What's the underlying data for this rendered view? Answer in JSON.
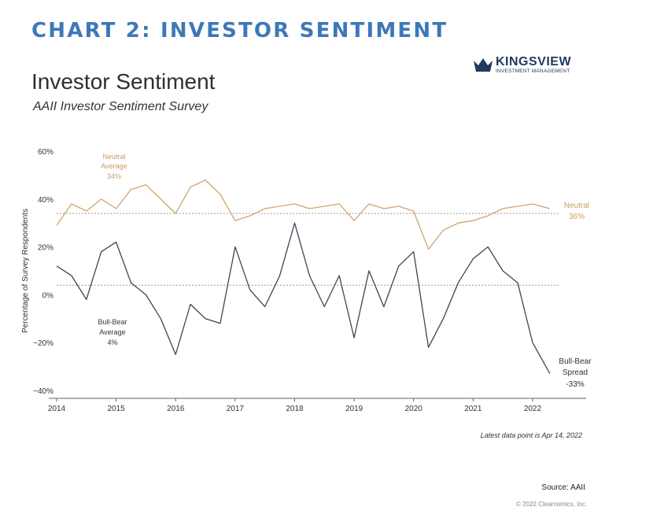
{
  "header": {
    "title": "CHART 2: INVESTOR SENTIMENT"
  },
  "logo": {
    "name": "KINGSVIEW",
    "tagline": "INVESTMENT MANAGEMENT"
  },
  "colors": {
    "header": "#3d78b8",
    "neutral": "#d4a36c",
    "spread": "#3b4655",
    "logo": "#1f3a5c",
    "reference": "#9a9a9a",
    "axis": "#666666",
    "neutral_text": "#c99a63",
    "text": "#333333"
  },
  "chart_data": {
    "type": "line",
    "title": "Investor Sentiment",
    "subtitle": "AAII Investor Sentiment Survey",
    "ylabel": "Percentage of Survey Respondents",
    "xlabel": "",
    "ylim": [
      -44,
      64
    ],
    "xlim": [
      2014,
      2022.9
    ],
    "y_ticks": [
      {
        "value": 60,
        "label": "60%"
      },
      {
        "value": 40,
        "label": "40%"
      },
      {
        "value": 20,
        "label": "20%"
      },
      {
        "value": 0,
        "label": "0%"
      },
      {
        "value": -20,
        "label": "−20%"
      },
      {
        "value": -40,
        "label": "−40%"
      }
    ],
    "x_ticks": [
      {
        "value": 2014,
        "label": "2014"
      },
      {
        "value": 2015,
        "label": "2015"
      },
      {
        "value": 2016,
        "label": "2016"
      },
      {
        "value": 2017,
        "label": "2017"
      },
      {
        "value": 2018,
        "label": "2018"
      },
      {
        "value": 2019,
        "label": "2019"
      },
      {
        "value": 2020,
        "label": "2020"
      },
      {
        "value": 2021,
        "label": "2021"
      },
      {
        "value": 2022,
        "label": "2022"
      }
    ],
    "reference_lines": [
      {
        "name": "Neutral Average",
        "value": 34
      },
      {
        "name": "Bull-Bear Average",
        "value": 4
      }
    ],
    "annotations": {
      "neutral_avg": [
        "Neutral",
        "Average",
        "34%"
      ],
      "neutral_last": [
        "Neutral",
        "36%"
      ],
      "spread_avg": [
        "Bull-Bear",
        "Average",
        "4%"
      ],
      "spread_last": [
        "Bull-Bear",
        "Spread",
        "-33%"
      ]
    },
    "series": [
      {
        "name": "Neutral",
        "x": [
          2014.0,
          2014.25,
          2014.5,
          2014.75,
          2015.0,
          2015.25,
          2015.5,
          2015.75,
          2016.0,
          2016.25,
          2016.5,
          2016.75,
          2017.0,
          2017.25,
          2017.5,
          2017.75,
          2018.0,
          2018.25,
          2018.5,
          2018.75,
          2019.0,
          2019.25,
          2019.5,
          2019.75,
          2020.0,
          2020.25,
          2020.5,
          2020.75,
          2021.0,
          2021.25,
          2021.5,
          2021.75,
          2022.0,
          2022.29
        ],
        "values": [
          29,
          38,
          35,
          40,
          36,
          44,
          46,
          40,
          34,
          45,
          48,
          42,
          31,
          33,
          36,
          37,
          38,
          36,
          37,
          38,
          31,
          38,
          36,
          37,
          35,
          19,
          27,
          30,
          31,
          33,
          36,
          37,
          38,
          36
        ]
      },
      {
        "name": "Bull-Bear Spread",
        "x": [
          2014.0,
          2014.25,
          2014.5,
          2014.75,
          2015.0,
          2015.25,
          2015.5,
          2015.75,
          2016.0,
          2016.25,
          2016.5,
          2016.75,
          2017.0,
          2017.25,
          2017.5,
          2017.75,
          2018.0,
          2018.25,
          2018.5,
          2018.75,
          2019.0,
          2019.25,
          2019.5,
          2019.75,
          2020.0,
          2020.25,
          2020.5,
          2020.75,
          2021.0,
          2021.25,
          2021.5,
          2021.75,
          2022.0,
          2022.29
        ],
        "values": [
          12,
          8,
          -2,
          18,
          22,
          5,
          0,
          -10,
          -25,
          -4,
          -10,
          -12,
          20,
          2,
          -5,
          8,
          30,
          8,
          -5,
          8,
          -18,
          10,
          -5,
          12,
          18,
          -22,
          -10,
          5,
          15,
          20,
          10,
          5,
          -20,
          -33
        ]
      }
    ]
  },
  "footer": {
    "latest_note": "Latest data point is Apr 14, 2022",
    "source": "Source: AAII",
    "copyright": "© 2022 Clearnomics, Inc."
  }
}
